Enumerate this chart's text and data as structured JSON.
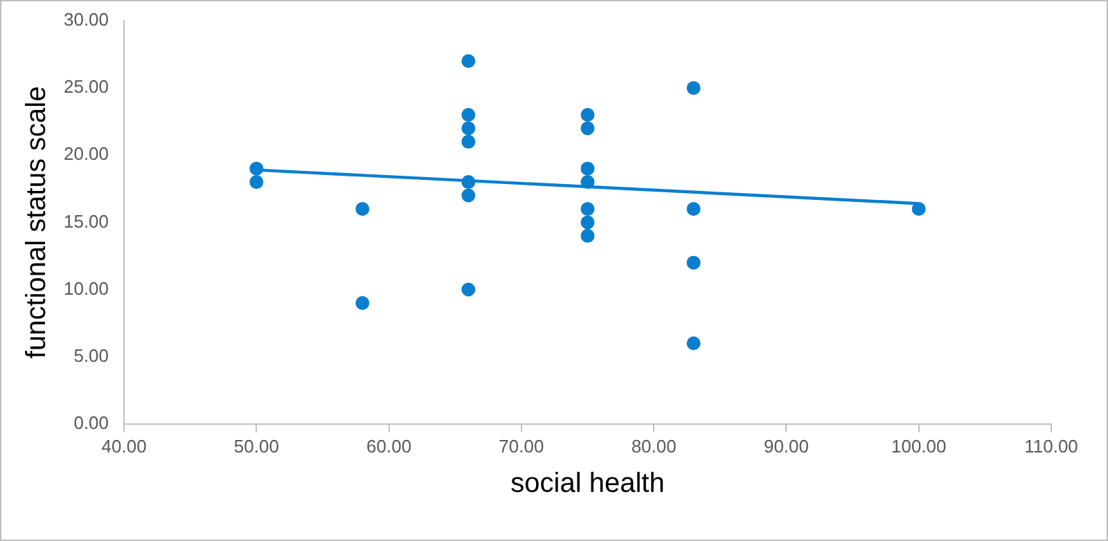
{
  "chart_data": {
    "type": "scatter",
    "xlabel": "social health",
    "ylabel": "functional status scale",
    "xlim": [
      40,
      110
    ],
    "xticks": [
      {
        "value": 40,
        "label": "40.00"
      },
      {
        "value": 50,
        "label": "50.00"
      },
      {
        "value": 60,
        "label": "60.00"
      },
      {
        "value": 70,
        "label": "70.00"
      },
      {
        "value": 80,
        "label": "80.00"
      },
      {
        "value": 90,
        "label": "90.00"
      },
      {
        "value": 100,
        "label": "100.00"
      },
      {
        "value": 110,
        "label": "110.00"
      }
    ],
    "ylim": [
      0,
      30
    ],
    "yticks": [
      {
        "value": 0,
        "label": "0.00"
      },
      {
        "value": 5,
        "label": "5.00"
      },
      {
        "value": 10,
        "label": "10.00"
      },
      {
        "value": 15,
        "label": "15.00"
      },
      {
        "value": 20,
        "label": "20.00"
      },
      {
        "value": 25,
        "label": "25.00"
      },
      {
        "value": 30,
        "label": "30.00"
      }
    ],
    "grid": false,
    "legend": false,
    "marker": "circle",
    "series": [
      {
        "color": "#0a7fcf",
        "x": [
          50,
          50,
          58,
          58,
          66,
          66,
          66,
          66,
          66,
          66,
          66,
          75,
          75,
          75,
          75,
          75,
          75,
          75,
          83,
          83,
          83,
          83,
          100
        ],
        "values": [
          19,
          18,
          16,
          9,
          27,
          23,
          22,
          21,
          18,
          17,
          10,
          23,
          22,
          19,
          18,
          16,
          15,
          14,
          25,
          16,
          12,
          6,
          16
        ]
      },
      {
        "type": "line",
        "color": "#0a7fcf",
        "x": [
          50,
          100
        ],
        "values": [
          18.9,
          16.4
        ],
        "marker": "none"
      }
    ]
  }
}
